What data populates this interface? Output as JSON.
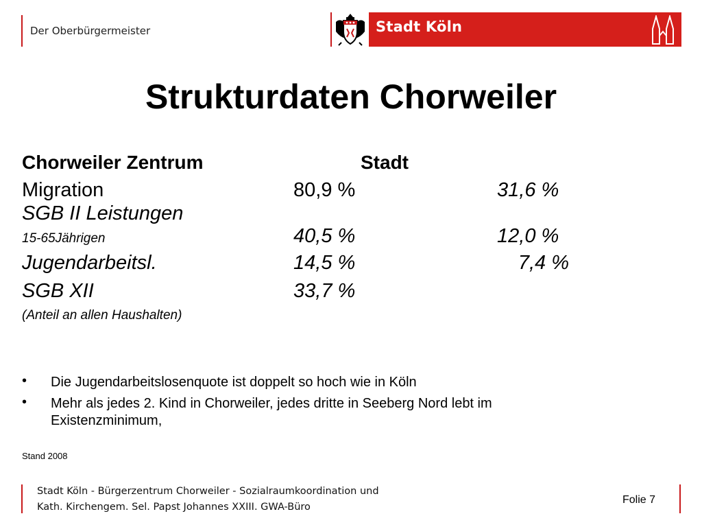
{
  "header": {
    "department": "Der Oberbürgermeister",
    "logo_text": "Stadt Köln",
    "accent_color": "#d51f1b"
  },
  "title": "Strukturdaten Chorweiler",
  "table": {
    "col_label": "Chorweiler Zentrum",
    "col_stadt": "Stadt",
    "rows": [
      {
        "label": "Migration",
        "zentrum": "80,9 %",
        "stadt": "31,6 %"
      },
      {
        "label": "SGB II Leistungen",
        "sublabel": "15-65Jährigen",
        "zentrum": "40,5 %",
        "stadt": "12,0 %"
      },
      {
        "label": "Jugendarbeitsl.",
        "zentrum": "14,5 %",
        "stadt": "7,4 %"
      },
      {
        "label": "SGB XII",
        "zentrum": "33,7 %",
        "stadt": ""
      }
    ],
    "note": "(Anteil an allen Haushalten)"
  },
  "bullets": [
    "Die Jugendarbeitslosenquote  ist  doppelt so hoch wie in Köln",
    "Mehr als jedes 2. Kind in Chorweiler, jedes dritte in Seeberg Nord  lebt im",
    "Existenzminimum,"
  ],
  "bullet_symbol": "•",
  "stand": "Stand 2008",
  "footer": {
    "line1": "Stadt Köln - Bürgerzentrum Chorweiler - Sozialraumkoordination und",
    "line2": "Kath. Kirchengem. Sel. Papst Johannes XXIII. GWA-Büro",
    "folie": "Folie 7"
  }
}
